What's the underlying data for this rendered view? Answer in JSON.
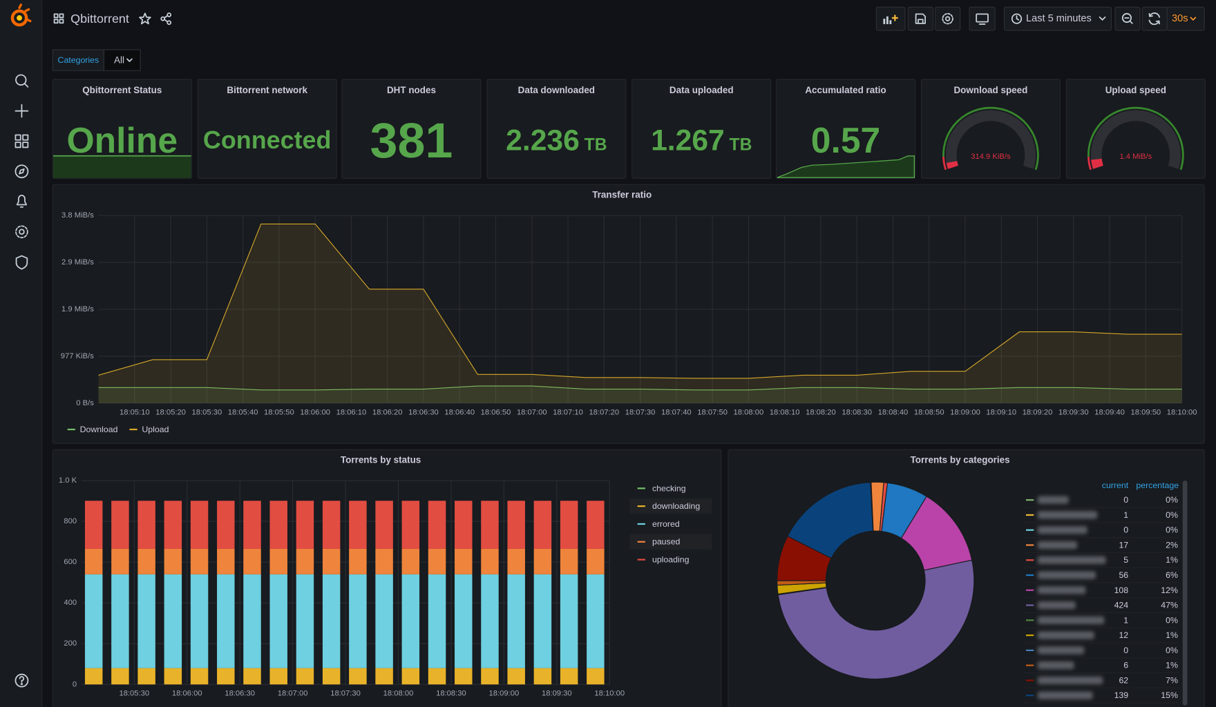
{
  "header": {
    "title": "Qbittorrent",
    "time_range": "Last 5 minutes",
    "refresh": "30s"
  },
  "variables": {
    "label": "Categories",
    "value": "All"
  },
  "stat_panels": [
    {
      "type": "stat",
      "title": "Qbittorrent Status",
      "value": "Online"
    },
    {
      "type": "stat",
      "title": "Bittorrent network",
      "value": "Connected"
    },
    {
      "type": "stat",
      "title": "DHT nodes",
      "value": "381"
    },
    {
      "type": "stat",
      "title": "Data downloaded",
      "value": "2.236",
      "unit": "TB"
    },
    {
      "type": "stat",
      "title": "Data uploaded",
      "value": "1.267",
      "unit": "TB"
    },
    {
      "type": "stat",
      "title": "Accumulated ratio",
      "value": "0.57"
    },
    {
      "type": "gauge",
      "title": "Download speed",
      "value": "314.9 KiB/s"
    },
    {
      "type": "gauge",
      "title": "Upload speed",
      "value": "1.4 MiB/s"
    }
  ],
  "chart_data": [
    {
      "type": "line",
      "title": "Transfer ratio",
      "x": [
        "18:05:00",
        "18:05:15",
        "18:05:30",
        "18:05:45",
        "18:06:00",
        "18:06:15",
        "18:06:30",
        "18:06:45",
        "18:07:00",
        "18:07:15",
        "18:07:30",
        "18:07:45",
        "18:08:00",
        "18:08:15",
        "18:08:30",
        "18:08:45",
        "18:09:00",
        "18:09:15",
        "18:09:30",
        "18:09:45",
        "18:10:00"
      ],
      "xlim": [
        "18:05:00",
        "18:10:00"
      ],
      "xticks": [
        "18:05:10",
        "18:05:20",
        "18:05:30",
        "18:05:40",
        "18:05:50",
        "18:06:00",
        "18:06:10",
        "18:06:20",
        "18:06:30",
        "18:06:40",
        "18:06:50",
        "18:07:00",
        "18:07:10",
        "18:07:20",
        "18:07:30",
        "18:07:40",
        "18:07:50",
        "18:08:00",
        "18:08:10",
        "18:08:20",
        "18:08:30",
        "18:08:40",
        "18:08:50",
        "18:09:00",
        "18:09:10",
        "18:09:20",
        "18:09:30",
        "18:09:40",
        "18:09:50",
        "18:10:00"
      ],
      "ylim": [
        0,
        4000000
      ],
      "yticks": [
        {
          "value": 0,
          "label": "0 B/s"
        },
        {
          "value": 1000000,
          "label": "977 KiB/s"
        },
        {
          "value": 2000000,
          "label": "1.9 MiB/s"
        },
        {
          "value": 3000000,
          "label": "2.9 MiB/s"
        },
        {
          "value": 4000000,
          "label": "3.8 MiB/s"
        }
      ],
      "grid": true,
      "series": [
        {
          "name": "Download",
          "color": "#73bf69",
          "values": [
            331000,
            331000,
            331000,
            281000,
            281000,
            298000,
            298000,
            364000,
            364000,
            298000,
            298000,
            281000,
            281000,
            331000,
            331000,
            298000,
            298000,
            331000,
            331000,
            298000,
            298000
          ]
        },
        {
          "name": "Upload",
          "color": "#d6a82a",
          "values": [
            595000,
            926000,
            926000,
            3820000,
            3820000,
            2430000,
            2430000,
            612000,
            612000,
            545000,
            545000,
            529000,
            529000,
            595000,
            595000,
            678000,
            678000,
            1520000,
            1520000,
            1470000,
            1470000
          ]
        }
      ]
    },
    {
      "type": "stacked-bar",
      "title": "Torrents by status",
      "x": [
        "18:05:07",
        "18:05:22",
        "18:05:37",
        "18:05:52",
        "18:06:07",
        "18:06:22",
        "18:06:37",
        "18:06:52",
        "18:07:07",
        "18:07:22",
        "18:07:37",
        "18:07:52",
        "18:08:07",
        "18:08:22",
        "18:08:37",
        "18:08:52",
        "18:09:07",
        "18:09:22",
        "18:09:37",
        "18:09:52"
      ],
      "xlim": [
        "18:05:00",
        "18:10:00"
      ],
      "xticks": [
        "18:05:30",
        "18:06:00",
        "18:06:30",
        "18:07:00",
        "18:07:30",
        "18:08:00",
        "18:08:30",
        "18:09:00",
        "18:09:30",
        "18:10:00"
      ],
      "ylim": [
        0,
        1000
      ],
      "yticks": [
        0,
        200,
        400,
        600,
        800,
        {
          "value": 1000,
          "label": "1.0 K"
        }
      ],
      "grid": true,
      "series": [
        {
          "name": "checking",
          "color": "#73bf69",
          "values": [
            0,
            0,
            0,
            0,
            0,
            0,
            0,
            0,
            0,
            0,
            0,
            0,
            0,
            0,
            0,
            0,
            0,
            0,
            0,
            0
          ]
        },
        {
          "name": "downloading",
          "color": "#e8b32a",
          "values": [
            80,
            80,
            80,
            80,
            80,
            80,
            80,
            80,
            80,
            80,
            80,
            80,
            80,
            80,
            80,
            80,
            80,
            80,
            80,
            80
          ]
        },
        {
          "name": "errored",
          "color": "#6ed0e0",
          "values": [
            460,
            460,
            460,
            460,
            460,
            460,
            460,
            460,
            460,
            460,
            460,
            460,
            460,
            460,
            460,
            460,
            460,
            460,
            460,
            460
          ]
        },
        {
          "name": "paused",
          "color": "#ef843c",
          "values": [
            125,
            125,
            125,
            125,
            125,
            125,
            125,
            125,
            125,
            125,
            125,
            125,
            125,
            125,
            125,
            125,
            125,
            125,
            125,
            125
          ]
        },
        {
          "name": "uploading",
          "color": "#e24d42",
          "values": [
            236,
            236,
            236,
            236,
            236,
            236,
            236,
            236,
            236,
            236,
            236,
            236,
            236,
            236,
            236,
            236,
            236,
            236,
            236,
            236
          ]
        }
      ]
    },
    {
      "type": "donut",
      "title": "Torrents by categories",
      "columns": [
        "current",
        "percentage"
      ],
      "categories": [
        null,
        null,
        null,
        null,
        null,
        null,
        null,
        null,
        null,
        null,
        null,
        null,
        null,
        null
      ],
      "values": [
        0,
        1,
        0,
        17,
        5,
        56,
        108,
        424,
        1,
        12,
        0,
        6,
        62,
        139
      ],
      "percentages": [
        "0%",
        "0%",
        "0%",
        "2%",
        "1%",
        "6%",
        "12%",
        "47%",
        "0%",
        "1%",
        "0%",
        "1%",
        "7%",
        "15%"
      ],
      "colors": [
        "#7eb26d",
        "#eab839",
        "#6ed0e0",
        "#ef843c",
        "#e24d42",
        "#1f78c1",
        "#ba43a9",
        "#705da0",
        "#508642",
        "#cca300",
        "#447ebc",
        "#c15c17",
        "#890f02",
        "#0a437c"
      ]
    }
  ]
}
